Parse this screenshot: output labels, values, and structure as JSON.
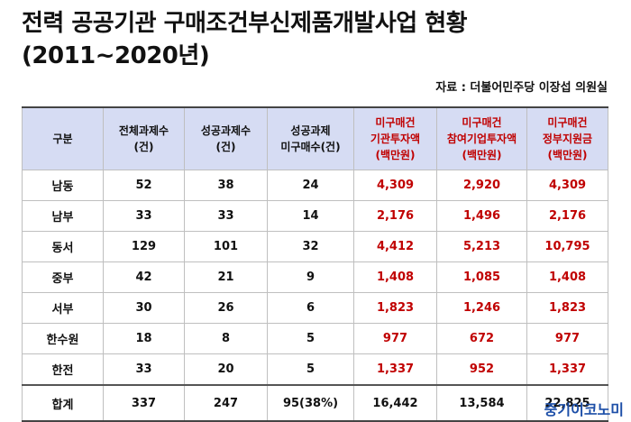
{
  "title": {
    "line1": "전력 공공기관 구매조건부신제품개발사업 현황",
    "line2": "(2011~2020년)"
  },
  "source": "자료 : 더불어민주당 이장섭 의원실",
  "table": {
    "headers": [
      "구분",
      "전체과제수\n(건)",
      "성공과제수\n(건)",
      "성공과제\n미구매수(건)",
      "미구매건\n기관투자액\n(백만원)",
      "미구매건\n참여기업투자액\n(백만원)",
      "미구매건\n정부지원금\n(백만원)"
    ],
    "rows": [
      [
        "남동",
        "52",
        "38",
        "24",
        "4,309",
        "2,920",
        "4,309"
      ],
      [
        "남부",
        "33",
        "33",
        "14",
        "2,176",
        "1,496",
        "2,176"
      ],
      [
        "동서",
        "129",
        "101",
        "32",
        "4,412",
        "5,213",
        "10,795"
      ],
      [
        "중부",
        "42",
        "21",
        "9",
        "1,408",
        "1,085",
        "1,408"
      ],
      [
        "서부",
        "30",
        "26",
        "6",
        "1,823",
        "1,246",
        "1,823"
      ],
      [
        "한수원",
        "18",
        "8",
        "5",
        "977",
        "672",
        "977"
      ],
      [
        "한전",
        "33",
        "20",
        "5",
        "1,337",
        "952",
        "1,337"
      ]
    ],
    "total": [
      "합계",
      "337",
      "247",
      "95(38%)",
      "16,442",
      "13,584",
      "22,825"
    ]
  },
  "watermark": "중기이코노미",
  "colors": {
    "header_bg": "#d6dcf3",
    "highlight_text": "#c00000",
    "watermark": "#1d4fa8"
  }
}
